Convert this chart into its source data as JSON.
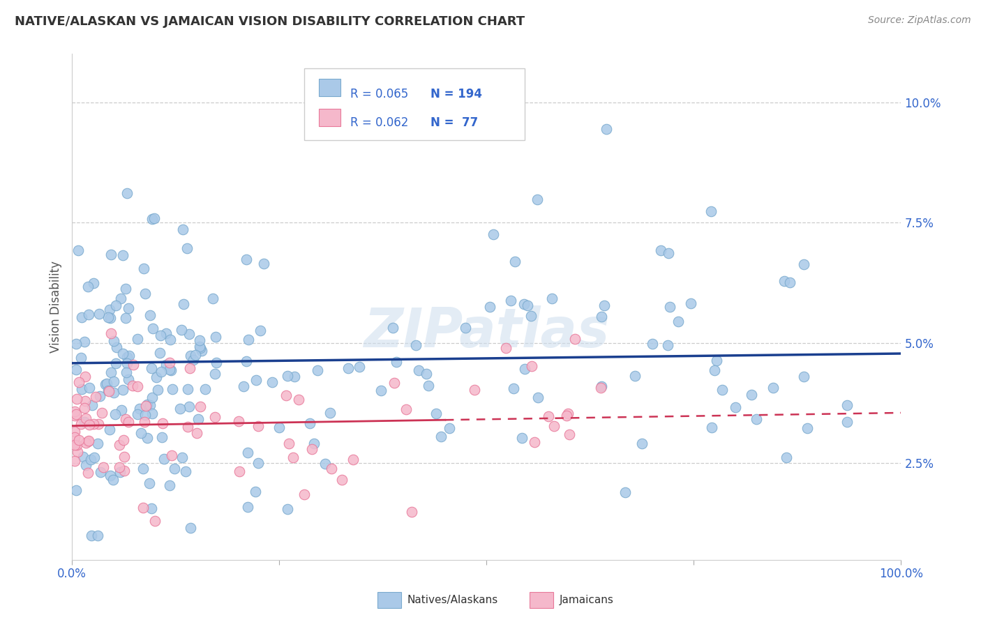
{
  "title": "NATIVE/ALASKAN VS JAMAICAN VISION DISABILITY CORRELATION CHART",
  "source": "Source: ZipAtlas.com",
  "ylabel": "Vision Disability",
  "xlim": [
    0,
    100
  ],
  "ylim": [
    0.5,
    11.0
  ],
  "yticks": [
    2.5,
    5.0,
    7.5,
    10.0
  ],
  "xticks": [
    0,
    25,
    50,
    75,
    100
  ],
  "xtick_labels": [
    "0.0%",
    "",
    "",
    "",
    "100.0%"
  ],
  "ytick_labels": [
    "2.5%",
    "5.0%",
    "7.5%",
    "10.0%"
  ],
  "blue_color": "#aac9e8",
  "blue_edge_color": "#7aaace",
  "pink_color": "#f5b8cb",
  "pink_edge_color": "#e8799a",
  "blue_line_color": "#1a3f8f",
  "pink_line_color": "#cc3355",
  "R_blue": 0.065,
  "N_blue": 194,
  "R_pink": 0.062,
  "N_pink": 77,
  "legend_color": "#3366cc",
  "watermark": "ZIPatlas",
  "background_color": "#ffffff",
  "blue_line_x0": 0,
  "blue_line_x1": 100,
  "blue_line_y0": 4.58,
  "blue_line_y1": 4.78,
  "pink_line_x0": 0,
  "pink_line_x1": 100,
  "pink_line_y0": 3.28,
  "pink_line_y1": 3.55,
  "pink_dash_start": 45
}
